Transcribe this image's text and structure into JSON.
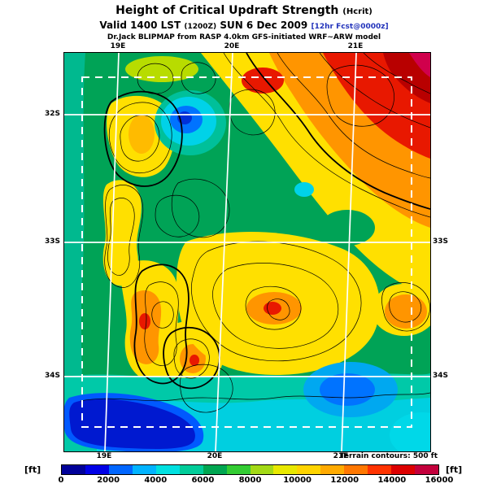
{
  "header": {
    "title_main": "Height of Critical Updraft Strength",
    "title_param": "(Hcrit)",
    "valid_prefix": "Valid 1400 LST",
    "valid_zulu": "(1200Z)",
    "valid_date": "SUN 6 Dec 2009",
    "valid_fcst": "[12hr Fcst@0000z]",
    "model_line": "Dr.Jack BLIPMAP from RASP 4.0km GFS-initiated WRF~ARW model"
  },
  "map": {
    "top_labels": [
      "19E",
      "20E",
      "21E"
    ],
    "bottom_labels": [
      "19E",
      "20E",
      "21E"
    ],
    "left_labels": [
      "32S",
      "33S",
      "34S"
    ],
    "right_labels": [
      "33S",
      "34S"
    ],
    "terrain_note": "Terrain contours: 500 ft"
  },
  "colorbar": {
    "unit_left": "[ft]",
    "unit_right": "[ft]",
    "ticks": [
      "0",
      "2000",
      "4000",
      "6000",
      "8000",
      "10000",
      "12000",
      "14000",
      "16000"
    ],
    "colors": [
      "#000099",
      "#0000e6",
      "#0066ff",
      "#00b3ff",
      "#00e0e0",
      "#00cc99",
      "#00a651",
      "#33cc33",
      "#a3d916",
      "#e8e800",
      "#ffd400",
      "#ffaa00",
      "#ff7700",
      "#ff3300",
      "#dd0000",
      "#c3003c"
    ]
  },
  "chart_data": {
    "type": "heatmap",
    "title": "Height of Critical Updraft Strength (Hcrit)",
    "scale_unit": "ft",
    "scale_ticks": [
      0,
      2000,
      4000,
      6000,
      8000,
      10000,
      12000,
      14000,
      16000
    ],
    "scale_range": [
      0,
      16000
    ],
    "region": {
      "lon_lines": [
        "19E",
        "20E",
        "21E"
      ],
      "lat_lines": [
        "32S",
        "33S",
        "34S"
      ]
    },
    "terrain_contour_interval_ft": 500
  }
}
